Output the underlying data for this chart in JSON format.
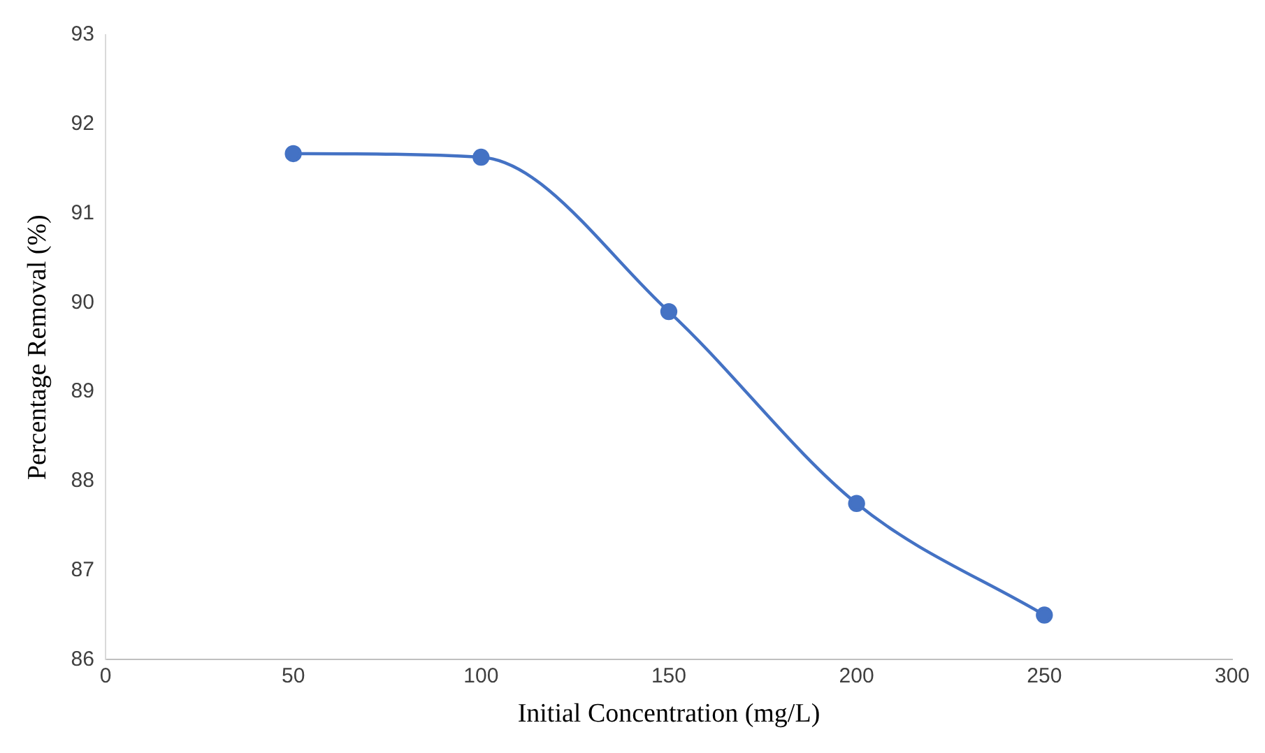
{
  "chart_data": {
    "type": "line",
    "xlabel": "Initial Concentration (mg/L)",
    "ylabel": "Percentage Removal (%)",
    "x": [
      50,
      100,
      150,
      200,
      250
    ],
    "series": [
      {
        "color": "#4472c4",
        "values": [
          91.67,
          91.63,
          89.9,
          87.75,
          86.5
        ]
      }
    ],
    "xlim": [
      0,
      300
    ],
    "xticks": [
      0,
      50,
      100,
      150,
      200,
      250,
      300
    ],
    "ylim": [
      86,
      93
    ],
    "yticks": [
      86,
      87,
      88,
      89,
      90,
      91,
      92,
      93
    ],
    "grid": false,
    "legend": false,
    "marker": "circle",
    "line_style": "solid"
  }
}
